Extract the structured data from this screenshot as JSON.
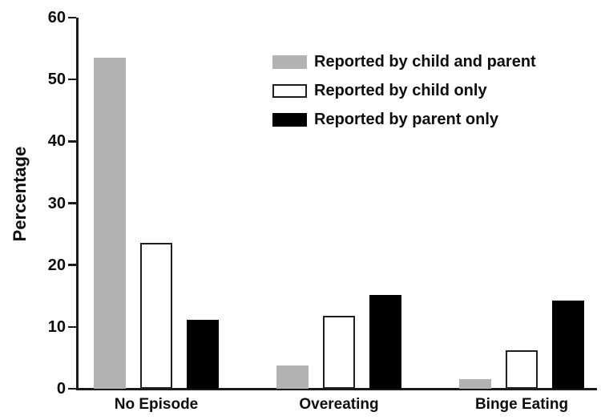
{
  "chart_data": {
    "type": "bar",
    "title": "",
    "xlabel": "",
    "ylabel": "Percentage",
    "ylim": [
      0,
      60
    ],
    "yticks": [
      0,
      10,
      20,
      30,
      40,
      50,
      60
    ],
    "grid": false,
    "legend_position": "upper-right-inside",
    "categories": [
      "No Episode",
      "Overeating",
      "Binge Eating"
    ],
    "series": [
      {
        "name": "Reported by child and parent",
        "fill": "#b2b2b2",
        "outlined": false,
        "values": [
          53.5,
          3.8,
          1.6
        ]
      },
      {
        "name": "Reported by child only",
        "fill": "#ffffff",
        "outlined": true,
        "values": [
          23.6,
          11.8,
          6.2
        ]
      },
      {
        "name": "Reported by parent only",
        "fill": "#000000",
        "outlined": false,
        "values": [
          11.2,
          15.2,
          14.2
        ]
      }
    ],
    "colors": {
      "axis": "#1a1a1a",
      "text": "#0d0d0d",
      "background": "#ffffff"
    }
  }
}
